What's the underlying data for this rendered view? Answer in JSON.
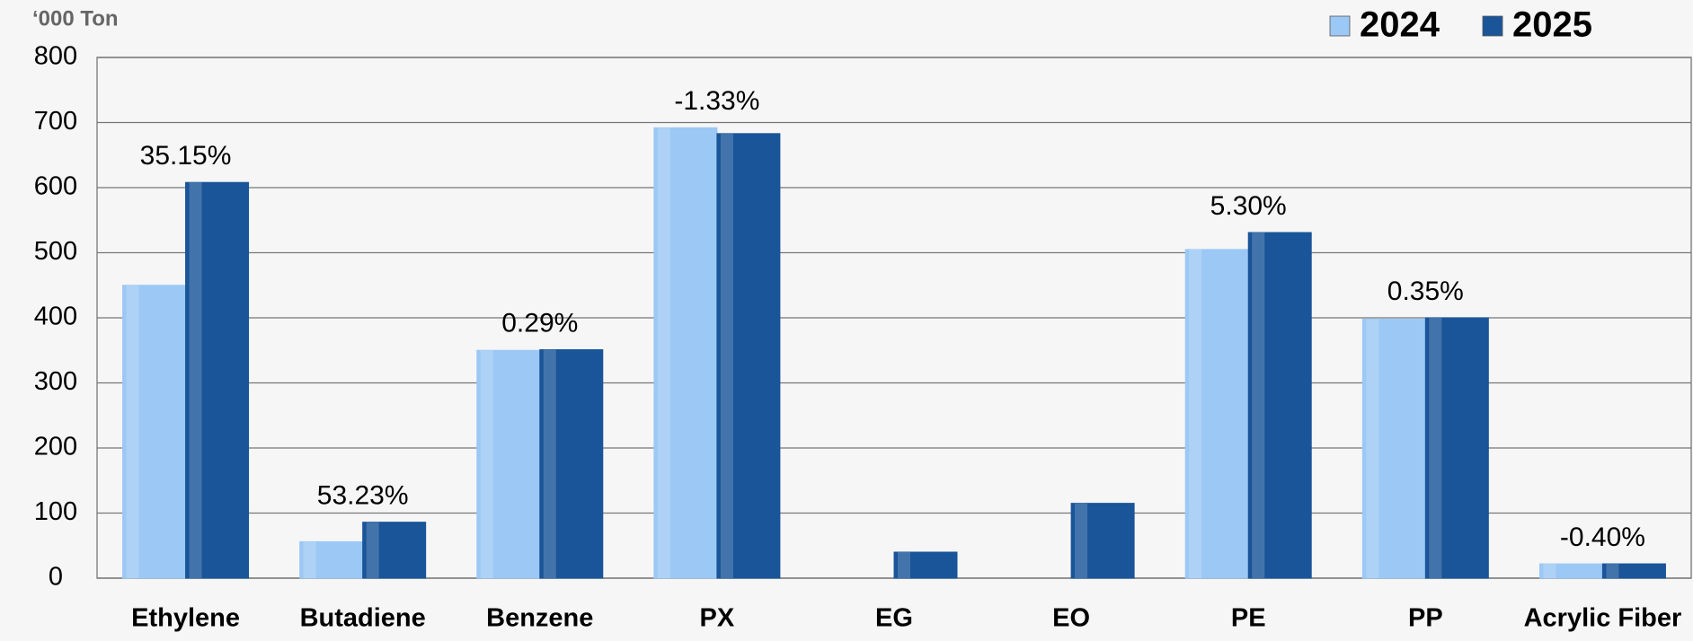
{
  "chart_data": {
    "type": "bar",
    "y_axis_label": "‘000 Ton",
    "categories": [
      "Ethylene",
      "Butadiene",
      "Benzene",
      "PX",
      "EG",
      "EO",
      "PE",
      "PP",
      "Acrylic Fiber"
    ],
    "series": [
      {
        "name": "2024",
        "color": "#9cc8f5",
        "values": [
          450,
          56,
          350,
          692,
          0,
          null,
          505,
          398,
          22
        ]
      },
      {
        "name": "2025",
        "color": "#1a5599",
        "values": [
          608,
          86,
          351,
          683,
          40,
          115,
          531,
          400,
          22
        ]
      }
    ],
    "annotations": [
      "35.15%",
      "53.23%",
      "0.29%",
      "-1.33%",
      null,
      null,
      "5.30%",
      "0.35%",
      "-0.40%"
    ],
    "ylim": [
      0,
      800
    ],
    "yticks": [
      0,
      100,
      200,
      300,
      400,
      500,
      600,
      700,
      800
    ],
    "grid": true,
    "legend": "top-right"
  }
}
